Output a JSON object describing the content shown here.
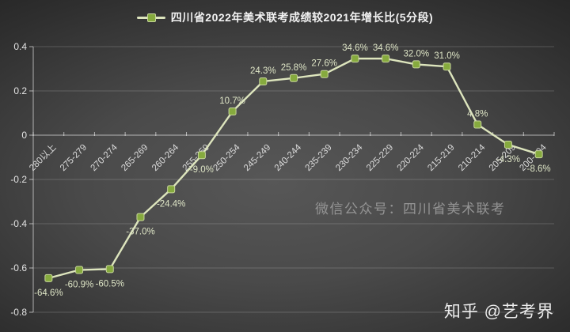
{
  "legend": {
    "label": "四川省2022年美术联考成绩较2021年增长比(5分段)"
  },
  "watermarks": {
    "wechat": "微信公众号：四川省美术联考",
    "zhihu": "知乎 @艺考界"
  },
  "colors": {
    "line": "#dde5bd",
    "marker_fill": "#86aa3e",
    "marker_border": "#c8d69c",
    "data_label": "#dee5c6",
    "axis_text": "#e3e3e3",
    "category_text": "#dcdcdc",
    "gridline": "rgba(255,255,255,0.18)",
    "axis_line": "rgba(255,255,255,0.6)",
    "legend_text": "#f2f2f2"
  },
  "chart_data": {
    "type": "line",
    "title": "四川省2022年美术联考成绩较2021年增长比(5分段)",
    "categories": [
      "280以上",
      "275-279",
      "270-274",
      "265-269",
      "260-264",
      "255-259",
      "250-254",
      "245-249",
      "240-244",
      "235-239",
      "230-234",
      "225-229",
      "220-224",
      "215-219",
      "210-214",
      "205-209",
      "200-204"
    ],
    "values_percent": [
      -64.6,
      -60.9,
      -60.5,
      -37.0,
      -24.4,
      -9.0,
      10.7,
      24.3,
      25.8,
      27.6,
      34.6,
      34.6,
      32.0,
      31.0,
      4.8,
      -4.3,
      -8.6
    ],
    "data_labels": [
      "-64.6%",
      "-60.9%",
      "-60.5%",
      "-37.0%",
      "-24.4%",
      "-9.0%",
      "10.7%",
      "24.3%",
      "25.8%",
      "27.6%",
      "34.6%",
      "34.6%",
      "32.0%",
      "31.0%",
      "4.8%",
      "-4.3%",
      "-8.6%"
    ],
    "xlabel": "",
    "ylabel": "",
    "ylim": [
      -0.8,
      0.4
    ],
    "yticks": [
      "0.4",
      "0.2",
      "0",
      "-0.2",
      "-0.4",
      "-0.6",
      "-0.8"
    ],
    "grid": "horizontal",
    "legend_position": "top-center",
    "marker": "square"
  }
}
